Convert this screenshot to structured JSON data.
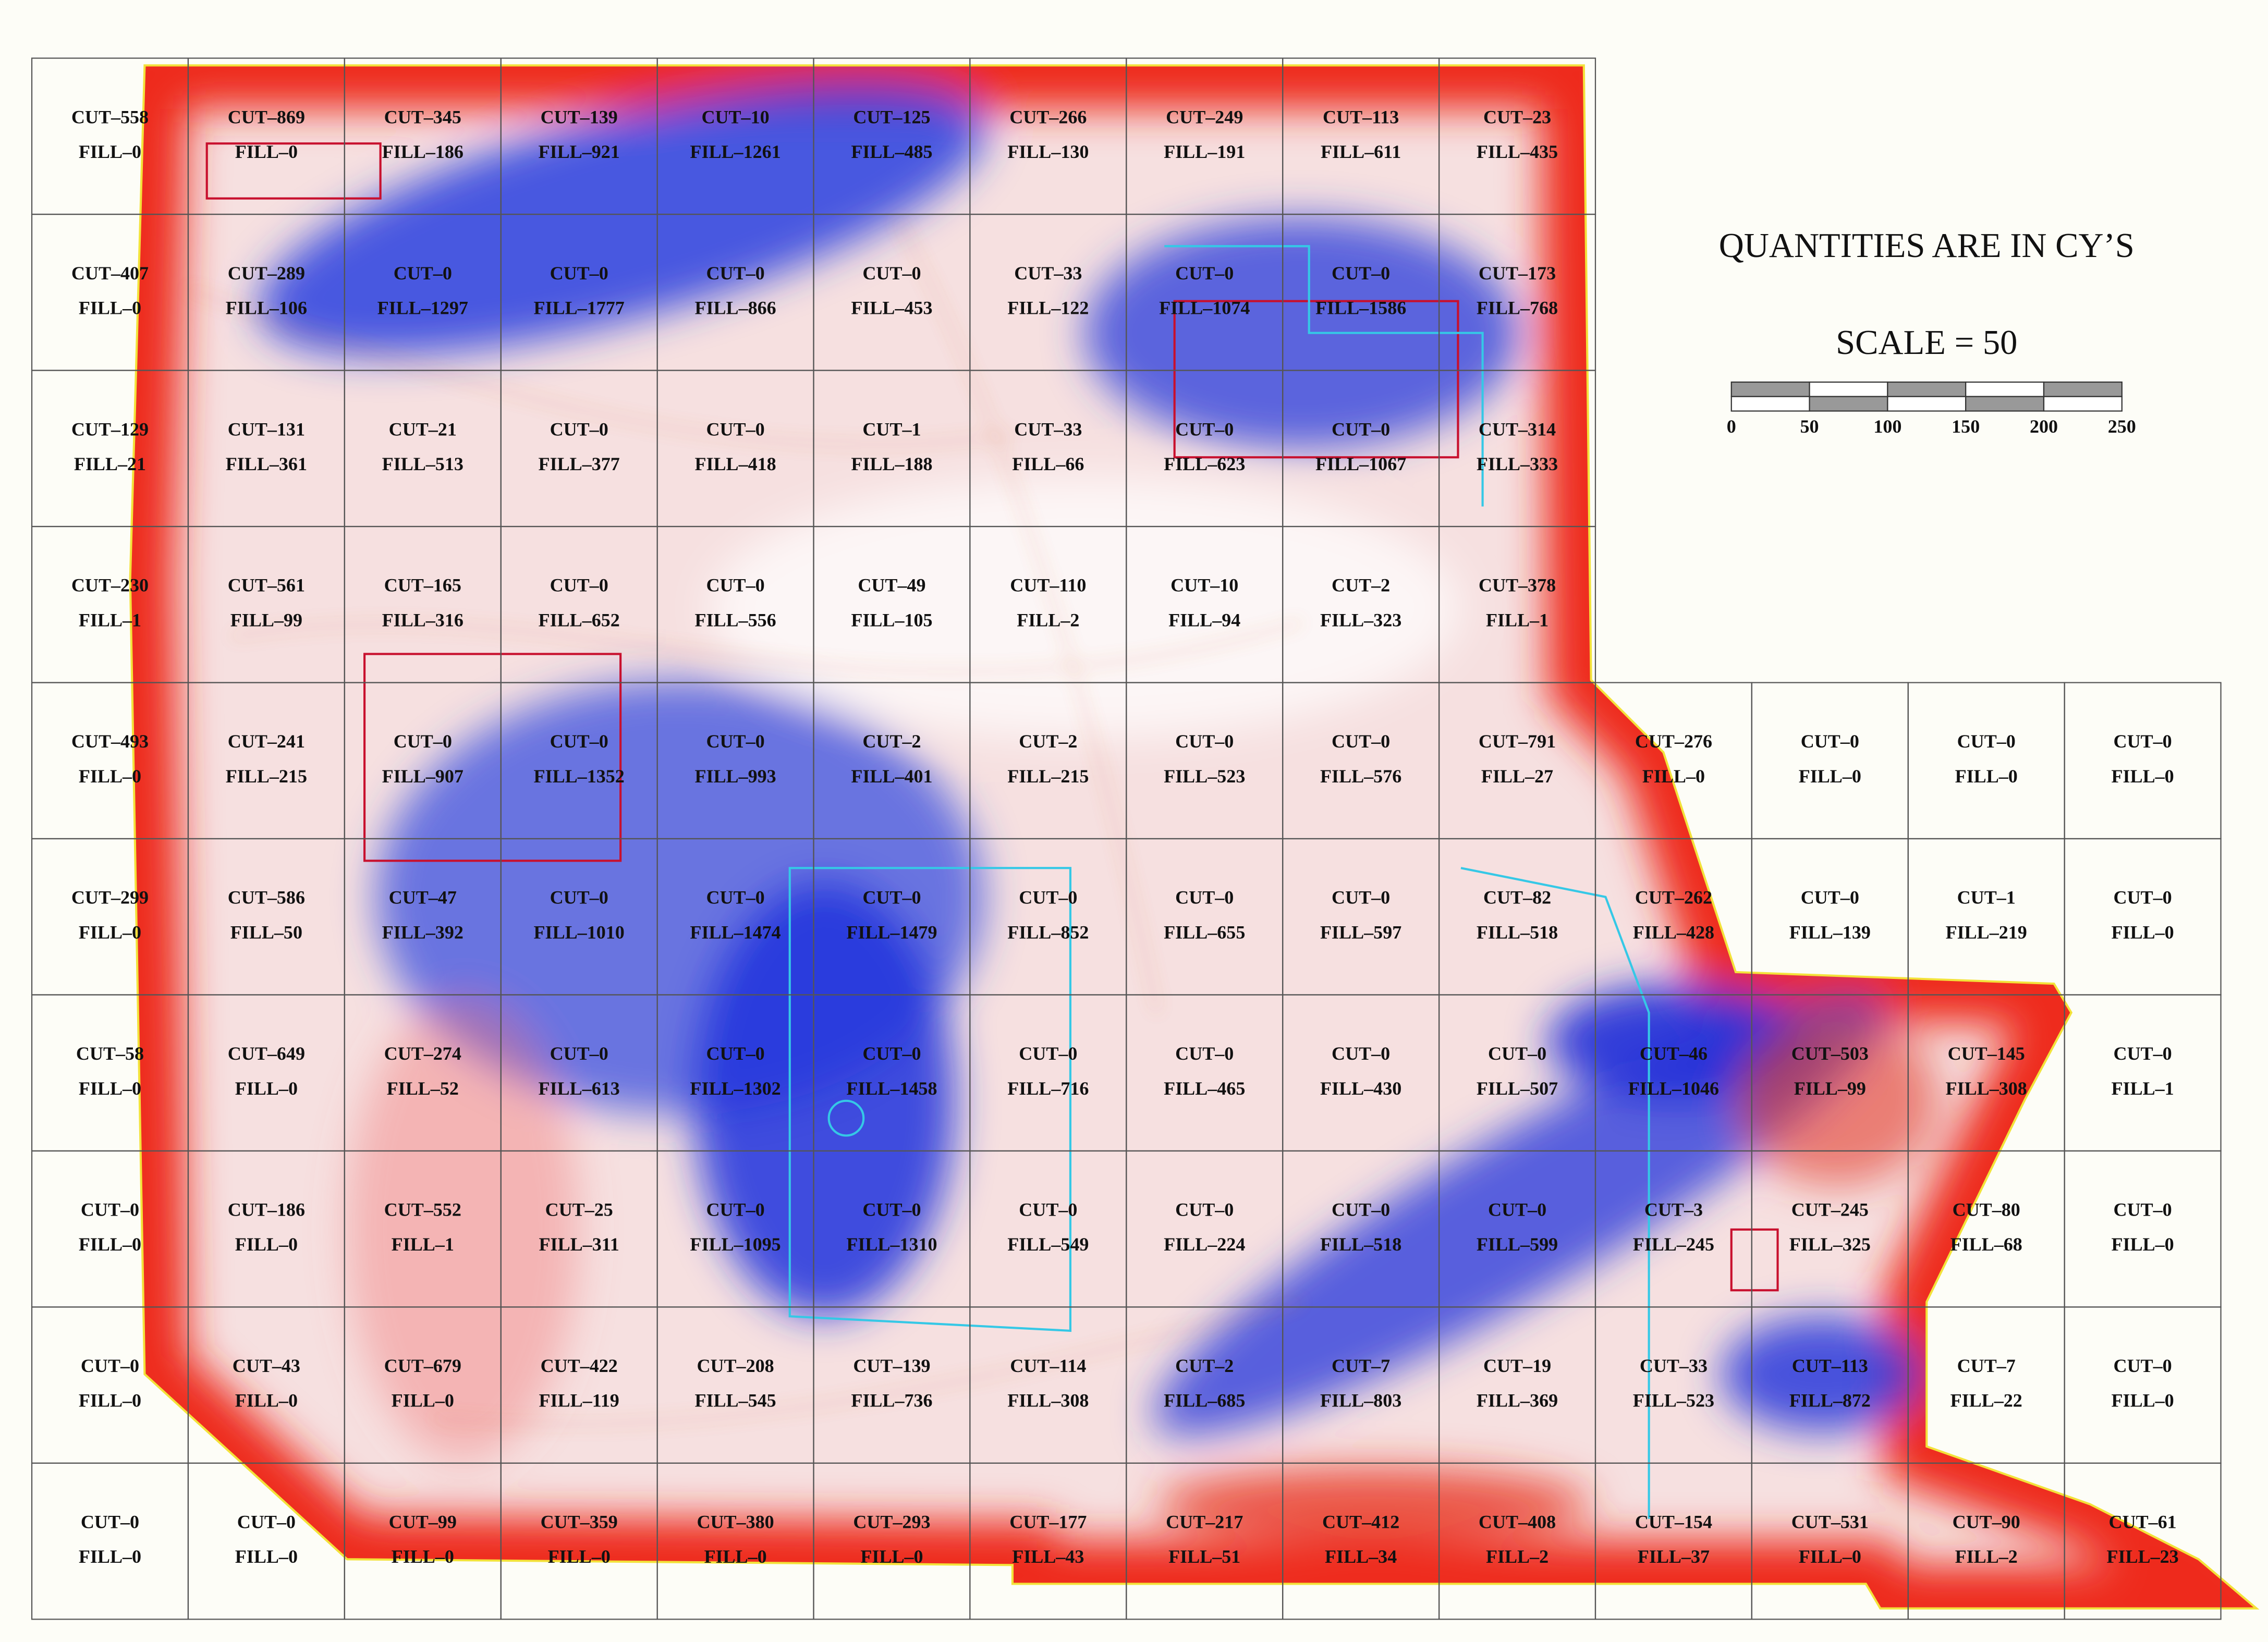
{
  "legend": {
    "note": "QUANTITIES ARE IN CY’S",
    "scale": "SCALE = 50",
    "scale_ticks": [
      "0",
      "50",
      "100",
      "150",
      "200",
      "250"
    ]
  },
  "grid": {
    "rows": [
      [
        [
          "CUT–558",
          "FILL–0"
        ],
        [
          "CUT–869",
          "FILL–0"
        ],
        [
          "CUT–345",
          "FILL–186"
        ],
        [
          "CUT–139",
          "FILL–921"
        ],
        [
          "CUT–10",
          "FILL–1261"
        ],
        [
          "CUT–125",
          "FILL–485"
        ],
        [
          "CUT–266",
          "FILL–130"
        ],
        [
          "CUT–249",
          "FILL–191"
        ],
        [
          "CUT–113",
          "FILL–611"
        ],
        [
          "CUT–23",
          "FILL–435"
        ]
      ],
      [
        [
          "CUT–407",
          "FILL–0"
        ],
        [
          "CUT–289",
          "FILL–106"
        ],
        [
          "CUT–0",
          "FILL–1297"
        ],
        [
          "CUT–0",
          "FILL–1777"
        ],
        [
          "CUT–0",
          "FILL–866"
        ],
        [
          "CUT–0",
          "FILL–453"
        ],
        [
          "CUT–33",
          "FILL–122"
        ],
        [
          "CUT–0",
          "FILL–1074"
        ],
        [
          "CUT–0",
          "FILL–1586"
        ],
        [
          "CUT–173",
          "FILL–768"
        ]
      ],
      [
        [
          "CUT–129",
          "FILL–21"
        ],
        [
          "CUT–131",
          "FILL–361"
        ],
        [
          "CUT–21",
          "FILL–513"
        ],
        [
          "CUT–0",
          "FILL–377"
        ],
        [
          "CUT–0",
          "FILL–418"
        ],
        [
          "CUT–1",
          "FILL–188"
        ],
        [
          "CUT–33",
          "FILL–66"
        ],
        [
          "CUT–0",
          "FILL–623"
        ],
        [
          "CUT–0",
          "FILL–1067"
        ],
        [
          "CUT–314",
          "FILL–333"
        ]
      ],
      [
        [
          "CUT–230",
          "FILL–1"
        ],
        [
          "CUT–561",
          "FILL–99"
        ],
        [
          "CUT–165",
          "FILL–316"
        ],
        [
          "CUT–0",
          "FILL–652"
        ],
        [
          "CUT–0",
          "FILL–556"
        ],
        [
          "CUT–49",
          "FILL–105"
        ],
        [
          "CUT–110",
          "FILL–2"
        ],
        [
          "CUT–10",
          "FILL–94"
        ],
        [
          "CUT–2",
          "FILL–323"
        ],
        [
          "CUT–378",
          "FILL–1"
        ]
      ],
      [
        [
          "CUT–493",
          "FILL–0"
        ],
        [
          "CUT–241",
          "FILL–215"
        ],
        [
          "CUT–0",
          "FILL–907"
        ],
        [
          "CUT–0",
          "FILL–1352"
        ],
        [
          "CUT–0",
          "FILL–993"
        ],
        [
          "CUT–2",
          "FILL–401"
        ],
        [
          "CUT–2",
          "FILL–215"
        ],
        [
          "CUT–0",
          "FILL–523"
        ],
        [
          "CUT–0",
          "FILL–576"
        ],
        [
          "CUT–791",
          "FILL–27"
        ],
        [
          "CUT–276",
          "FILL–0"
        ],
        [
          "CUT–0",
          "FILL–0"
        ],
        [
          "CUT–0",
          "FILL–0"
        ],
        [
          "CUT–0",
          "FILL–0"
        ]
      ],
      [
        [
          "CUT–299",
          "FILL–0"
        ],
        [
          "CUT–586",
          "FILL–50"
        ],
        [
          "CUT–47",
          "FILL–392"
        ],
        [
          "CUT–0",
          "FILL–1010"
        ],
        [
          "CUT–0",
          "FILL–1474"
        ],
        [
          "CUT–0",
          "FILL–1479"
        ],
        [
          "CUT–0",
          "FILL–852"
        ],
        [
          "CUT–0",
          "FILL–655"
        ],
        [
          "CUT–0",
          "FILL–597"
        ],
        [
          "CUT–82",
          "FILL–518"
        ],
        [
          "CUT–262",
          "FILL–428"
        ],
        [
          "CUT–0",
          "FILL–139"
        ],
        [
          "CUT–1",
          "FILL–219"
        ],
        [
          "CUT–0",
          "FILL–0"
        ]
      ],
      [
        [
          "CUT–58",
          "FILL–0"
        ],
        [
          "CUT–649",
          "FILL–0"
        ],
        [
          "CUT–274",
          "FILL–52"
        ],
        [
          "CUT–0",
          "FILL–613"
        ],
        [
          "CUT–0",
          "FILL–1302"
        ],
        [
          "CUT–0",
          "FILL–1458"
        ],
        [
          "CUT–0",
          "FILL–716"
        ],
        [
          "CUT–0",
          "FILL–465"
        ],
        [
          "CUT–0",
          "FILL–430"
        ],
        [
          "CUT–0",
          "FILL–507"
        ],
        [
          "CUT–46",
          "FILL–1046"
        ],
        [
          "CUT–503",
          "FILL–99"
        ],
        [
          "CUT–145",
          "FILL–308"
        ],
        [
          "CUT–0",
          "FILL–1"
        ]
      ],
      [
        [
          "CUT–0",
          "FILL–0"
        ],
        [
          "CUT–186",
          "FILL–0"
        ],
        [
          "CUT–552",
          "FILL–1"
        ],
        [
          "CUT–25",
          "FILL–311"
        ],
        [
          "CUT–0",
          "FILL–1095"
        ],
        [
          "CUT–0",
          "FILL–1310"
        ],
        [
          "CUT–0",
          "FILL–549"
        ],
        [
          "CUT–0",
          "FILL–224"
        ],
        [
          "CUT–0",
          "FILL–518"
        ],
        [
          "CUT–0",
          "FILL–599"
        ],
        [
          "CUT–3",
          "FILL–245"
        ],
        [
          "CUT–245",
          "FILL–325"
        ],
        [
          "CUT–80",
          "FILL–68"
        ],
        [
          "CUT–0",
          "FILL–0"
        ]
      ],
      [
        [
          "CUT–0",
          "FILL–0"
        ],
        [
          "CUT–43",
          "FILL–0"
        ],
        [
          "CUT–679",
          "FILL–0"
        ],
        [
          "CUT–422",
          "FILL–119"
        ],
        [
          "CUT–208",
          "FILL–545"
        ],
        [
          "CUT–139",
          "FILL–736"
        ],
        [
          "CUT–114",
          "FILL–308"
        ],
        [
          "CUT–2",
          "FILL–685"
        ],
        [
          "CUT–7",
          "FILL–803"
        ],
        [
          "CUT–19",
          "FILL–369"
        ],
        [
          "CUT–33",
          "FILL–523"
        ],
        [
          "CUT–113",
          "FILL–872"
        ],
        [
          "CUT–7",
          "FILL–22"
        ],
        [
          "CUT–0",
          "FILL–0"
        ]
      ],
      [
        [
          "CUT–0",
          "FILL–0"
        ],
        [
          "CUT–0",
          "FILL–0"
        ],
        [
          "CUT–99",
          "FILL–0"
        ],
        [
          "CUT–359",
          "FILL–0"
        ],
        [
          "CUT–380",
          "FILL–0"
        ],
        [
          "CUT–293",
          "FILL–0"
        ],
        [
          "CUT–177",
          "FILL–43"
        ],
        [
          "CUT–217",
          "FILL–51"
        ],
        [
          "CUT–412",
          "FILL–34"
        ],
        [
          "CUT–408",
          "FILL–2"
        ],
        [
          "CUT–154",
          "FILL–37"
        ],
        [
          "CUT–531",
          "FILL–0"
        ],
        [
          "CUT–90",
          "FILL–2"
        ],
        [
          "CUT–61",
          "FILL–23"
        ]
      ]
    ]
  }
}
